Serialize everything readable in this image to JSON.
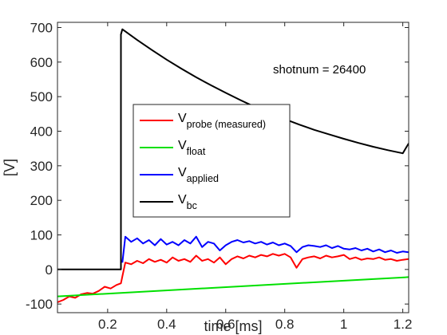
{
  "chart_data": {
    "type": "line",
    "title": "",
    "xlabel": "time [ms]",
    "ylabel": "[V]",
    "xlim": [
      0.03,
      1.22
    ],
    "ylim": [
      -125,
      715
    ],
    "xticks": [
      0.2,
      0.4,
      0.6,
      0.8,
      1,
      1.2
    ],
    "xtick_labels": [
      "0.2",
      "0.4",
      "0.6",
      "0.8",
      "1",
      "1.2"
    ],
    "yticks": [
      -100,
      0,
      100,
      200,
      300,
      400,
      500,
      600,
      700
    ],
    "ytick_labels": [
      "-100",
      "0",
      "100",
      "200",
      "300",
      "400",
      "500",
      "600",
      "700"
    ],
    "grid": false,
    "legend_position": "center-left",
    "annotation": "shotnum = 26400",
    "series": [
      {
        "name": "V",
        "name_sub": "probe (measured)",
        "color": "#ff0000",
        "x": [
          0.03,
          0.05,
          0.07,
          0.09,
          0.11,
          0.13,
          0.15,
          0.17,
          0.19,
          0.21,
          0.23,
          0.245,
          0.25,
          0.26,
          0.28,
          0.3,
          0.32,
          0.34,
          0.36,
          0.38,
          0.4,
          0.42,
          0.44,
          0.46,
          0.48,
          0.5,
          0.52,
          0.54,
          0.56,
          0.58,
          0.6,
          0.62,
          0.64,
          0.66,
          0.68,
          0.7,
          0.72,
          0.74,
          0.76,
          0.78,
          0.8,
          0.82,
          0.84,
          0.86,
          0.88,
          0.9,
          0.92,
          0.94,
          0.96,
          0.98,
          1.0,
          1.02,
          1.04,
          1.06,
          1.08,
          1.1,
          1.12,
          1.14,
          1.16,
          1.18,
          1.2,
          1.22
        ],
        "y": [
          -95,
          -88,
          -78,
          -82,
          -72,
          -68,
          -70,
          -62,
          -50,
          -55,
          -45,
          -40,
          -20,
          20,
          15,
          25,
          18,
          30,
          22,
          28,
          20,
          35,
          25,
          30,
          22,
          40,
          25,
          30,
          20,
          35,
          15,
          30,
          38,
          32,
          40,
          35,
          42,
          38,
          45,
          40,
          45,
          35,
          5,
          30,
          35,
          38,
          32,
          40,
          35,
          38,
          42,
          30,
          35,
          28,
          32,
          30,
          35,
          28,
          30,
          25,
          28,
          30
        ]
      },
      {
        "name": "V",
        "name_sub": "float",
        "color": "#00e000",
        "x": [
          0.03,
          1.22
        ],
        "y": [
          -78,
          -22
        ]
      },
      {
        "name": "V",
        "name_sub": "applied",
        "color": "#0000ff",
        "x": [
          0.25,
          0.26,
          0.28,
          0.3,
          0.32,
          0.34,
          0.36,
          0.38,
          0.4,
          0.42,
          0.44,
          0.46,
          0.48,
          0.5,
          0.52,
          0.54,
          0.56,
          0.58,
          0.6,
          0.62,
          0.64,
          0.66,
          0.68,
          0.7,
          0.72,
          0.74,
          0.76,
          0.78,
          0.8,
          0.82,
          0.84,
          0.86,
          0.88,
          0.9,
          0.92,
          0.94,
          0.96,
          0.98,
          1.0,
          1.02,
          1.04,
          1.06,
          1.08,
          1.1,
          1.12,
          1.14,
          1.16,
          1.18,
          1.2,
          1.22
        ],
        "y": [
          20,
          95,
          80,
          90,
          75,
          85,
          70,
          88,
          72,
          80,
          70,
          85,
          75,
          95,
          65,
          80,
          75,
          55,
          70,
          80,
          85,
          78,
          82,
          75,
          80,
          72,
          78,
          70,
          75,
          68,
          50,
          65,
          70,
          68,
          65,
          70,
          62,
          68,
          60,
          58,
          62,
          55,
          60,
          52,
          58,
          50,
          55,
          48,
          52,
          50
        ]
      },
      {
        "name": "V",
        "name_sub": "bc",
        "color": "#000000",
        "x": [
          0.03,
          0.245,
          0.245,
          0.25,
          0.3,
          0.35,
          0.4,
          0.45,
          0.5,
          0.55,
          0.6,
          0.65,
          0.7,
          0.75,
          0.8,
          0.85,
          0.9,
          0.95,
          1.0,
          1.05,
          1.1,
          1.15,
          1.2,
          1.22
        ],
        "y": [
          0,
          0,
          680,
          695,
          664,
          635,
          607,
          581,
          556,
          533,
          511,
          490,
          470,
          452,
          435,
          419,
          404,
          391,
          378,
          366,
          355,
          345,
          336,
          365
        ]
      }
    ]
  }
}
